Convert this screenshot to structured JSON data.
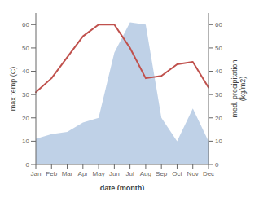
{
  "chart_data": {
    "type": "line",
    "categories": [
      "Jan",
      "Feb",
      "Mar",
      "Apr",
      "May",
      "Jun",
      "Jul",
      "Aug",
      "Sep",
      "Oct",
      "Nov",
      "Dec"
    ],
    "xlabel": "date (month)",
    "ylabel": "max temp (C)",
    "y2label": "med. precipitation\n(kg/m2)",
    "series": [
      {
        "type": "line",
        "color": "#c0514d",
        "values": [
          31,
          37,
          46,
          55,
          60,
          60,
          50,
          37,
          38,
          43,
          44,
          33
        ]
      },
      {
        "type": "area",
        "color": "#b8cce4",
        "axis": "y2",
        "values": [
          11,
          13,
          14,
          18,
          20,
          48,
          61,
          60,
          20,
          10,
          24,
          10
        ]
      }
    ],
    "ylim": [
      0,
      65
    ],
    "yticks": [
      0,
      10,
      20,
      30,
      40,
      50,
      60
    ],
    "y2lim": [
      0,
      65
    ],
    "y2ticks": [
      0,
      10,
      20,
      30,
      40,
      50,
      60
    ],
    "grid": false
  }
}
